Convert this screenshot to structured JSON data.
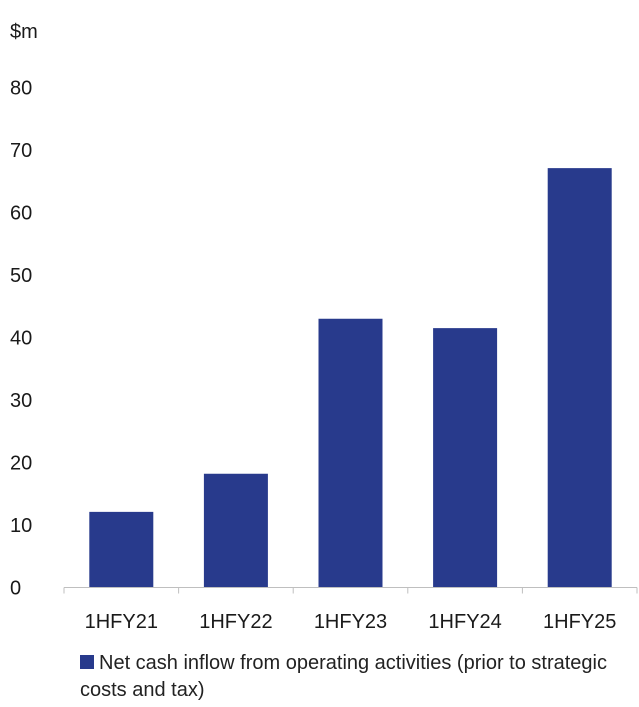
{
  "chart_data": {
    "type": "bar",
    "unit_label": "$m",
    "categories": [
      "1HFY21",
      "1HFY22",
      "1HFY23",
      "1HFY24",
      "1HFY25"
    ],
    "series": [
      {
        "name": "Net cash inflow from operating activities (prior to strategic costs and tax)",
        "values": [
          12.1,
          18.2,
          43.0,
          41.5,
          67.1
        ],
        "color": "#283A8C"
      }
    ],
    "ylim": [
      0,
      80
    ],
    "yticks": [
      "0",
      "10",
      "20",
      "30",
      "40",
      "50",
      "60",
      "70",
      "80"
    ],
    "grid": false,
    "legend_position": "bottom"
  }
}
